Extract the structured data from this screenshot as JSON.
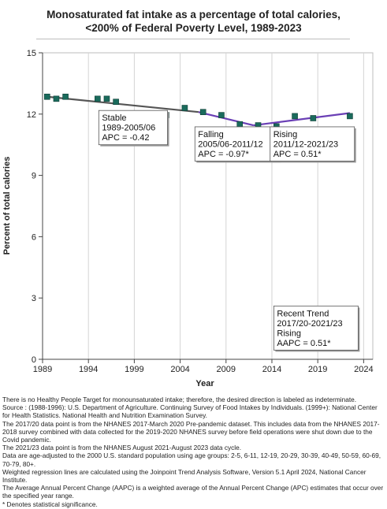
{
  "title_line1": "Monosaturated fat intake as a percentage of total calories,",
  "title_line2": "<200% of Federal Poverty Level,  1989-2023",
  "chart_data": {
    "type": "scatter",
    "xlabel": "Year",
    "ylabel": "Percent of total calories",
    "xlim": [
      1989,
      2025
    ],
    "ylim": [
      0,
      15
    ],
    "xticks": [
      1989,
      1994,
      1999,
      2004,
      2009,
      2014,
      2019,
      2024
    ],
    "yticks": [
      0,
      3,
      6,
      9,
      12,
      15
    ],
    "grid": "vertical-only",
    "marker_color": "#1a6b5c",
    "points": [
      {
        "x": 1989.5,
        "y": 12.85
      },
      {
        "x": 1990.5,
        "y": 12.75
      },
      {
        "x": 1991.5,
        "y": 12.85
      },
      {
        "x": 1995.0,
        "y": 12.75
      },
      {
        "x": 1996.0,
        "y": 12.75
      },
      {
        "x": 1997.0,
        "y": 12.6
      },
      {
        "x": 2000.5,
        "y": 11.95
      },
      {
        "x": 2002.5,
        "y": 11.95
      },
      {
        "x": 2004.5,
        "y": 12.3
      },
      {
        "x": 2006.5,
        "y": 12.1
      },
      {
        "x": 2008.5,
        "y": 11.95
      },
      {
        "x": 2010.5,
        "y": 11.5
      },
      {
        "x": 2012.5,
        "y": 11.45
      },
      {
        "x": 2014.5,
        "y": 11.4
      },
      {
        "x": 2016.5,
        "y": 11.9
      },
      {
        "x": 2018.5,
        "y": 11.8
      },
      {
        "x": 2022.5,
        "y": 11.9
      }
    ],
    "trend_segments": [
      {
        "label": "Stable",
        "x": [
          1989.5,
          2006.0
        ],
        "y": [
          12.85,
          12.1
        ],
        "color": "#555555"
      },
      {
        "label": "Falling",
        "x": [
          2006.0,
          2012.0
        ],
        "y": [
          12.1,
          11.45
        ],
        "color": "#6a3fb5"
      },
      {
        "label": "Rising",
        "x": [
          2012.0,
          2022.5
        ],
        "y": [
          11.45,
          12.05
        ],
        "color": "#6a3fb5"
      }
    ],
    "annotations": [
      {
        "lines": [
          "Stable",
          "1989-2005/06",
          "APC = -0.42"
        ],
        "x": 1995.3,
        "y": 10.5,
        "box": true
      },
      {
        "lines": [
          "Falling",
          "2005/06-2011/12",
          "APC = -0.97*"
        ],
        "x": 2014.8,
        "y": 9.7,
        "box": true
      },
      {
        "lines": [
          "Rising",
          "2011/12-2021/23",
          "APC =  0.51*"
        ],
        "x": 2023.0,
        "y": 9.7,
        "box": true
      },
      {
        "lines": [
          "Recent Trend",
          "2017/20-2021/23",
          "Rising",
          "AAPC =  0.51*"
        ],
        "x": 2023.4,
        "y": 0.45,
        "box": true
      }
    ]
  },
  "notes": [
    "There is no Healthy People Target for monounsaturated intake; therefore, the desired direction is labeled as indeterminate.",
    "Source : (1988-1996): U.S. Department of Agriculture. Continuing Survey of Food Intakes by Individuals. (1999+): National Center for Health Statistics. National Health and Nutrition Examination Survey.",
    "The 2017/20 data point is from the NHANES 2017-March 2020 Pre-pandemic dataset. This includes data from the NHANES 2017-2018 survey combined with data collected for the 2019-2020 NHANES survey before field operations were shut down due to the Covid pandemic.",
    "The 2021/23 data point is from the NHANES August 2021-August 2023 data cycle.",
    "Data are age-adjusted to the 2000 U.S. standard population using age groups: 2-5, 6-11, 12-19, 20-29, 30-39, 40-49, 50-59, 60-69, 70-79, 80+.",
    "Weighted regression lines are calculated using the Joinpoint Trend Analysis Software, Version 5.1 April 2024, National Cancer Institute.",
    "The Average Annual Percent Change (AAPC) is a weighted average of the Annual Percent Change (APC) estimates that occur over the specified year range.",
    "* Denotes statistical significance."
  ]
}
